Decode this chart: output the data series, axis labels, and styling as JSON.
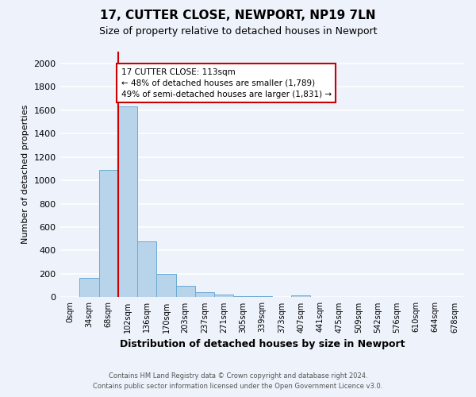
{
  "title": "17, CUTTER CLOSE, NEWPORT, NP19 7LN",
  "subtitle": "Size of property relative to detached houses in Newport",
  "xlabel": "Distribution of detached houses by size in Newport",
  "ylabel": "Number of detached properties",
  "bar_labels": [
    "0sqm",
    "34sqm",
    "68sqm",
    "102sqm",
    "136sqm",
    "170sqm",
    "203sqm",
    "237sqm",
    "271sqm",
    "305sqm",
    "339sqm",
    "373sqm",
    "407sqm",
    "441sqm",
    "475sqm",
    "509sqm",
    "542sqm",
    "576sqm",
    "610sqm",
    "644sqm",
    "678sqm"
  ],
  "bar_values": [
    0,
    165,
    1090,
    1630,
    480,
    200,
    100,
    42,
    20,
    10,
    10,
    0,
    15,
    0,
    0,
    0,
    0,
    0,
    0,
    0,
    0
  ],
  "bar_color": "#b8d4ea",
  "bar_edge_color": "#6aaad4",
  "background_color": "#edf2fb",
  "grid_color": "#ffffff",
  "vline_x": 3,
  "vline_color": "#cc0000",
  "annotation_text": "17 CUTTER CLOSE: 113sqm\n← 48% of detached houses are smaller (1,789)\n49% of semi-detached houses are larger (1,831) →",
  "annotation_box_facecolor": "#ffffff",
  "annotation_box_edgecolor": "#cc0000",
  "ylim": [
    0,
    2100
  ],
  "yticks": [
    0,
    200,
    400,
    600,
    800,
    1000,
    1200,
    1400,
    1600,
    1800,
    2000
  ],
  "footer_line1": "Contains HM Land Registry data © Crown copyright and database right 2024.",
  "footer_line2": "Contains public sector information licensed under the Open Government Licence v3.0."
}
